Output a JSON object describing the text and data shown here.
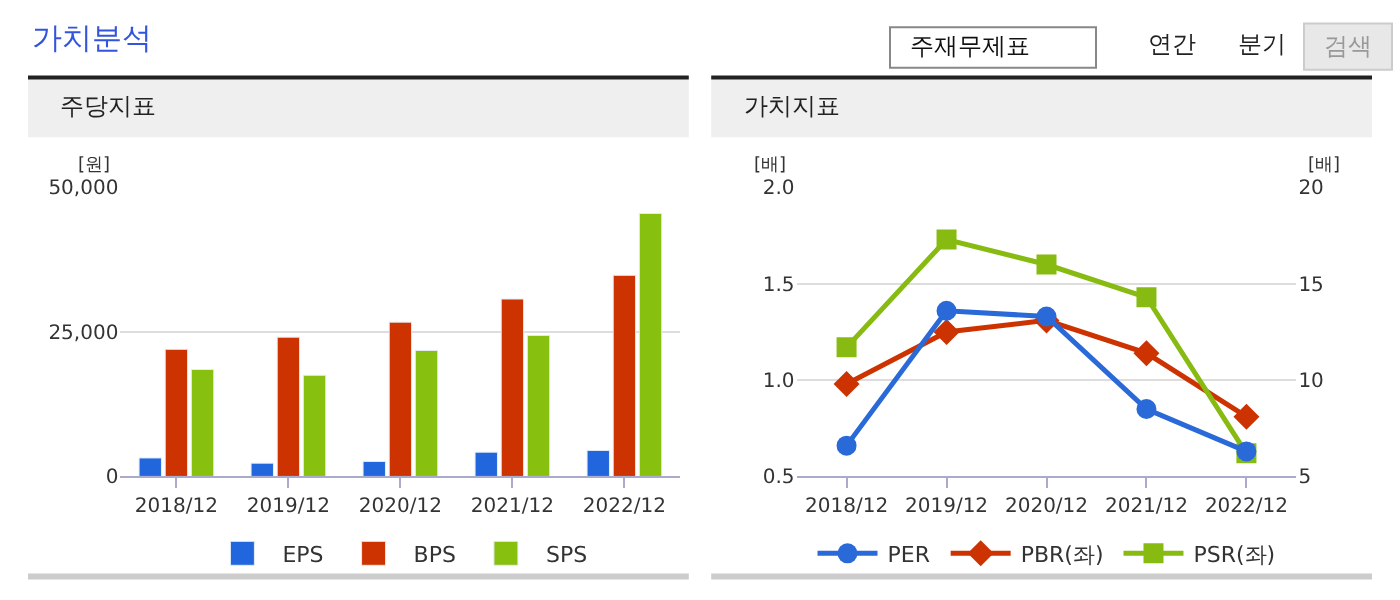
{
  "chart_data": [
    {
      "type": "other",
      "title": "가치분석",
      "annotations": [
        "주재무제표",
        "연간",
        "분기",
        "검색"
      ]
    },
    {
      "type": "bar",
      "title": "주당지표",
      "ylabel": "[원]",
      "categories": [
        "2018/12",
        "2019/12",
        "2020/12",
        "2021/12",
        "2022/12"
      ],
      "series": [
        {
          "name": "EPS",
          "color": "#2266dd",
          "values": [
            3200,
            2300,
            2600,
            4200,
            4500
          ]
        },
        {
          "name": "BPS",
          "color": "#cc3300",
          "values": [
            22000,
            24100,
            26700,
            30700,
            34800
          ]
        },
        {
          "name": "SPS",
          "color": "#88c010",
          "values": [
            18500,
            17500,
            21800,
            24400,
            45500
          ]
        }
      ],
      "ylim": [
        0,
        50000
      ],
      "yticks": [
        0,
        {
          "value": 25000,
          "label": "25,000"
        },
        {
          "value": 50000,
          "label": "50,000"
        }
      ],
      "grid": "y",
      "legend": "bottom"
    },
    {
      "type": "line",
      "title": "가치지표",
      "ylabel": "[배]",
      "y2label": "[배]",
      "categories": [
        "2018/12",
        "2019/12",
        "2020/12",
        "2021/12",
        "2022/12"
      ],
      "series": [
        {
          "name": "PER",
          "color": "#2a6ad8",
          "axis": "y2",
          "marker": "circle",
          "values": [
            6.6,
            13.6,
            13.3,
            8.5,
            6.3
          ]
        },
        {
          "name": "PBR(좌)",
          "color": "#cc3300",
          "marker": "diamond",
          "values": [
            0.98,
            1.25,
            1.31,
            1.14,
            0.81
          ]
        },
        {
          "name": "PSR(좌)",
          "color": "#88bb11",
          "marker": "square",
          "values": [
            1.17,
            1.73,
            1.6,
            1.43,
            0.62
          ]
        }
      ],
      "ylim": [
        0.5,
        2.0
      ],
      "yticks": [
        0.5,
        {
          "value": 1.0,
          "label": "1.0"
        },
        1.5,
        {
          "value": 2.0,
          "label": "2.0"
        }
      ],
      "y2lim": [
        5,
        20
      ],
      "y2ticks": [
        5,
        10,
        15,
        20
      ],
      "grid": "y",
      "legend": "bottom",
      "line_style": "solid"
    }
  ]
}
